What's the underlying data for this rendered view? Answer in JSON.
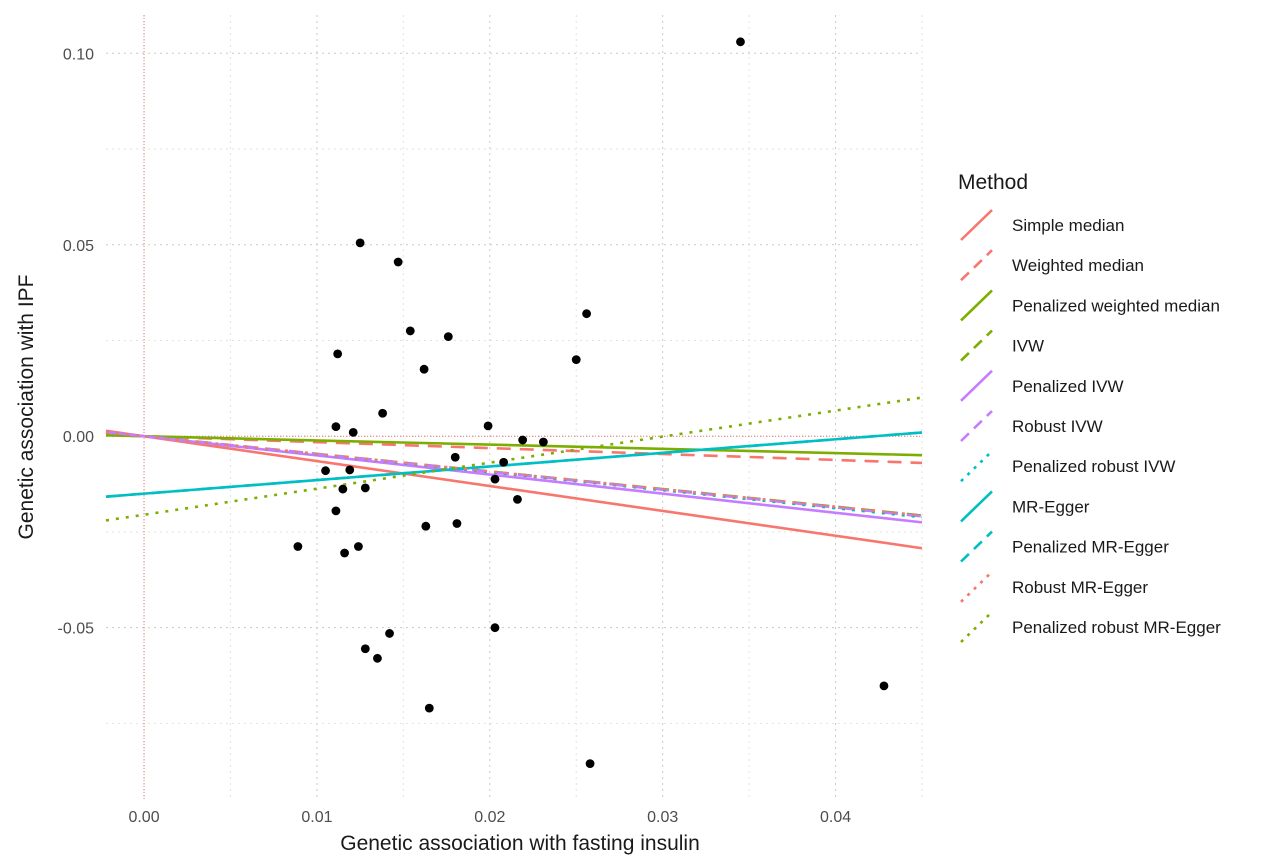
{
  "chart_data": {
    "type": "scatter",
    "title": "",
    "xlabel": "Genetic association with fasting insulin",
    "ylabel": "Genetic association with IPF",
    "xlim": [
      -0.0022,
      0.045
    ],
    "ylim": [
      -0.095,
      0.11
    ],
    "x_ticks": [
      0.0,
      0.01,
      0.02,
      0.03,
      0.04
    ],
    "x_tick_labels": [
      "0.00",
      "0.01",
      "0.02",
      "0.03",
      "0.04"
    ],
    "y_ticks": [
      -0.05,
      0.0,
      0.05,
      0.1
    ],
    "y_tick_labels": [
      "-0.05",
      "0.00",
      "0.05",
      "0.10"
    ],
    "grid": "dotted",
    "reference_lines": {
      "x": 0,
      "y": 0,
      "color": "#f8766d"
    },
    "points": [
      {
        "x": 0.0345,
        "y": 0.103
      },
      {
        "x": 0.0125,
        "y": 0.0505
      },
      {
        "x": 0.0147,
        "y": 0.0455
      },
      {
        "x": 0.0256,
        "y": 0.032
      },
      {
        "x": 0.0154,
        "y": 0.0275
      },
      {
        "x": 0.0176,
        "y": 0.026
      },
      {
        "x": 0.0112,
        "y": 0.0215
      },
      {
        "x": 0.025,
        "y": 0.02
      },
      {
        "x": 0.0162,
        "y": 0.0175
      },
      {
        "x": 0.0138,
        "y": 0.006
      },
      {
        "x": 0.0111,
        "y": 0.0025
      },
      {
        "x": 0.0199,
        "y": 0.0027
      },
      {
        "x": 0.0121,
        "y": 0.001
      },
      {
        "x": 0.0219,
        "y": -0.001
      },
      {
        "x": 0.0231,
        "y": -0.0015
      },
      {
        "x": 0.018,
        "y": -0.0055
      },
      {
        "x": 0.0208,
        "y": -0.0068
      },
      {
        "x": 0.0105,
        "y": -0.009
      },
      {
        "x": 0.0119,
        "y": -0.0088
      },
      {
        "x": 0.0203,
        "y": -0.0112
      },
      {
        "x": 0.0115,
        "y": -0.0138
      },
      {
        "x": 0.0128,
        "y": -0.0135
      },
      {
        "x": 0.0216,
        "y": -0.0165
      },
      {
        "x": 0.0111,
        "y": -0.0195
      },
      {
        "x": 0.0181,
        "y": -0.0228
      },
      {
        "x": 0.0163,
        "y": -0.0235
      },
      {
        "x": 0.0089,
        "y": -0.0288
      },
      {
        "x": 0.0124,
        "y": -0.0288
      },
      {
        "x": 0.0116,
        "y": -0.0305
      },
      {
        "x": 0.0203,
        "y": -0.05
      },
      {
        "x": 0.0142,
        "y": -0.0515
      },
      {
        "x": 0.0128,
        "y": -0.0555
      },
      {
        "x": 0.0135,
        "y": -0.058
      },
      {
        "x": 0.0428,
        "y": -0.0652
      },
      {
        "x": 0.0165,
        "y": -0.071
      },
      {
        "x": 0.0258,
        "y": -0.0855
      }
    ],
    "legend_title": "Method",
    "legend_position": "right",
    "series": [
      {
        "name": "Simple median",
        "color": "#f8766d",
        "dash": "solid",
        "intercept": 0.0,
        "slope": -0.65
      },
      {
        "name": "Weighted median",
        "color": "#f8766d",
        "dash": "dashed",
        "intercept": 0.0,
        "slope": -0.155
      },
      {
        "name": "Penalized weighted median",
        "color": "#7cae00",
        "dash": "solid",
        "intercept": 0.0,
        "slope": -0.11
      },
      {
        "name": "IVW",
        "color": "#7cae00",
        "dash": "dashed",
        "intercept": 0.0,
        "slope": -0.46
      },
      {
        "name": "Penalized IVW",
        "color": "#c77cff",
        "dash": "solid",
        "intercept": 0.0,
        "slope": -0.5
      },
      {
        "name": "Robust IVW",
        "color": "#c77cff",
        "dash": "dashed",
        "intercept": 0.0,
        "slope": -0.465
      },
      {
        "name": "Penalized robust IVW",
        "color": "#00bfc4",
        "dash": "dotted",
        "intercept": 0.0,
        "slope": -0.47
      },
      {
        "name": "MR-Egger",
        "color": "#00bfc4",
        "dash": "solid",
        "intercept": -0.015,
        "slope": 0.355
      },
      {
        "name": "Penalized MR-Egger",
        "color": "#00bfc4",
        "dash": "dashed",
        "intercept": -0.015,
        "slope": 0.355
      },
      {
        "name": "Robust MR-Egger",
        "color": "#f8766d",
        "dash": "dotted",
        "intercept": 0.0,
        "slope": -0.46
      },
      {
        "name": "Penalized robust MR-Egger",
        "color": "#7cae00",
        "dash": "dotted",
        "intercept": -0.0205,
        "slope": 0.68
      }
    ]
  }
}
